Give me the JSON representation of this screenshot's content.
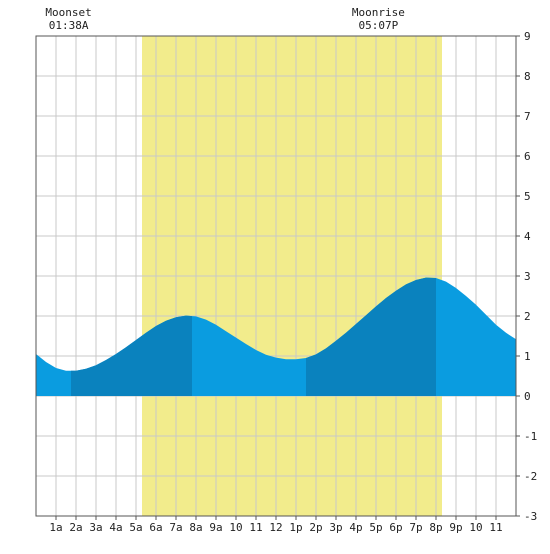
{
  "chart_data": {
    "type": "area",
    "title": "",
    "xlabel": "",
    "ylabel": "",
    "xlim": [
      0,
      24
    ],
    "ylim": [
      -3,
      9
    ],
    "y_ticks": [
      -3,
      -2,
      -1,
      0,
      1,
      2,
      3,
      4,
      5,
      6,
      7,
      8,
      9
    ],
    "x_tick_labels": [
      "1a",
      "2a",
      "3a",
      "4a",
      "5a",
      "6a",
      "7a",
      "8a",
      "9a",
      "10",
      "11",
      "12",
      "1p",
      "2p",
      "3p",
      "4p",
      "5p",
      "6p",
      "7p",
      "8p",
      "9p",
      "10",
      "11"
    ],
    "grid": true,
    "daylight": {
      "start_hour": 5.3,
      "end_hour": 20.3,
      "color": "#f2ec8c"
    },
    "moon_events": [
      {
        "label": "Moonset",
        "time": "01:38A",
        "hour": 1.63
      },
      {
        "label": "Moonrise",
        "time": "05:07P",
        "hour": 17.12
      }
    ],
    "extrema": [
      {
        "type": "low",
        "hour": 1.75,
        "value": 0.62
      },
      {
        "type": "high",
        "hour": 7.8,
        "value": 2.02
      },
      {
        "type": "low",
        "hour": 13.5,
        "value": 0.92
      },
      {
        "type": "high",
        "hour": 20.0,
        "value": 2.95
      }
    ],
    "series": [
      {
        "x": [
          0,
          0.5,
          1,
          1.5,
          2,
          2.5,
          3,
          3.5,
          4,
          4.5,
          5,
          5.5,
          6,
          6.5,
          7,
          7.5,
          8,
          8.5,
          9,
          9.5,
          10,
          10.5,
          11,
          11.5,
          12,
          12.5,
          13,
          13.5,
          14,
          14.5,
          15,
          15.5,
          16,
          16.5,
          17,
          17.5,
          18,
          18.5,
          19,
          19.5,
          20,
          20.5,
          21,
          21.5,
          22,
          22.5,
          23,
          23.5,
          24
        ],
        "y": [
          1.05,
          0.85,
          0.7,
          0.63,
          0.63,
          0.68,
          0.77,
          0.9,
          1.05,
          1.22,
          1.4,
          1.58,
          1.75,
          1.88,
          1.97,
          2.01,
          1.99,
          1.91,
          1.78,
          1.62,
          1.46,
          1.3,
          1.15,
          1.03,
          0.96,
          0.92,
          0.92,
          0.95,
          1.04,
          1.19,
          1.38,
          1.58,
          1.8,
          2.02,
          2.24,
          2.45,
          2.63,
          2.79,
          2.9,
          2.96,
          2.95,
          2.86,
          2.7,
          2.5,
          2.28,
          2.03,
          1.78,
          1.58,
          1.42
        ]
      }
    ],
    "colors": {
      "fill_light": "#0a9ce0",
      "fill_dark": "#0a82be",
      "grid": "#c8c8c8",
      "axis": "#555555"
    }
  }
}
